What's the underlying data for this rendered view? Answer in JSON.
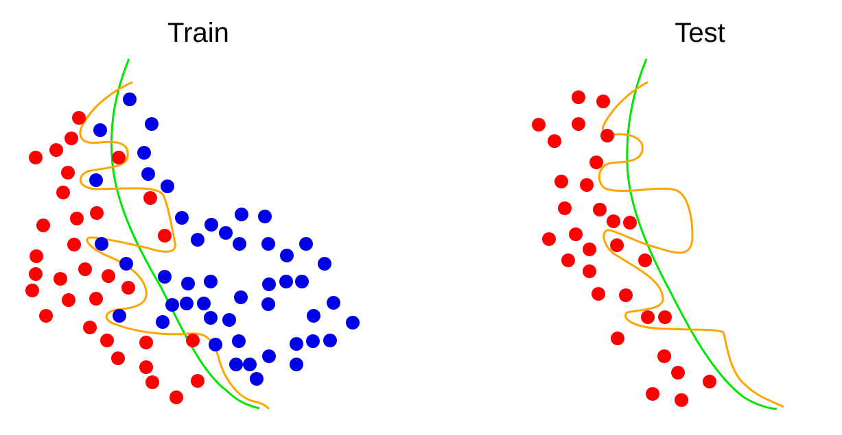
{
  "colors": {
    "class_a": "#ff0000",
    "class_b": "#0000e6",
    "simple_boundary": "#00e600",
    "complex_boundary": "#ffa500"
  },
  "panels": [
    {
      "title": "Train",
      "red_points": [
        [
          115,
          172
        ],
        [
          104,
          202
        ],
        [
          82,
          219
        ],
        [
          52,
          230
        ],
        [
          99,
          252
        ],
        [
          92,
          281
        ],
        [
          141,
          311
        ],
        [
          112,
          319
        ],
        [
          63,
          329
        ],
        [
          108,
          357
        ],
        [
          53,
          374
        ],
        [
          52,
          400
        ],
        [
          88,
          407
        ],
        [
          124,
          393
        ],
        [
          158,
          403
        ],
        [
          187,
          420
        ],
        [
          47,
          424
        ],
        [
          100,
          438
        ],
        [
          140,
          436
        ],
        [
          67,
          461
        ],
        [
          131,
          478
        ],
        [
          156,
          497
        ],
        [
          213,
          500
        ],
        [
          172,
          523
        ],
        [
          213,
          536
        ],
        [
          222,
          558
        ],
        [
          257,
          580
        ],
        [
          288,
          556
        ],
        [
          281,
          497
        ],
        [
          240,
          344
        ],
        [
          219,
          289
        ],
        [
          173,
          230
        ]
      ],
      "blue_points": [
        [
          189,
          145
        ],
        [
          146,
          190
        ],
        [
          221,
          181
        ],
        [
          210,
          223
        ],
        [
          216,
          254
        ],
        [
          140,
          263
        ],
        [
          244,
          272
        ],
        [
          265,
          318
        ],
        [
          308,
          328
        ],
        [
          288,
          350
        ],
        [
          329,
          340
        ],
        [
          352,
          313
        ],
        [
          386,
          316
        ],
        [
          349,
          356
        ],
        [
          391,
          356
        ],
        [
          148,
          356
        ],
        [
          184,
          385
        ],
        [
          240,
          404
        ],
        [
          274,
          414
        ],
        [
          307,
          411
        ],
        [
          418,
          373
        ],
        [
          446,
          356
        ],
        [
          473,
          385
        ],
        [
          417,
          411
        ],
        [
          392,
          415
        ],
        [
          440,
          411
        ],
        [
          351,
          434
        ],
        [
          391,
          444
        ],
        [
          486,
          442
        ],
        [
          457,
          461
        ],
        [
          514,
          471
        ],
        [
          251,
          445
        ],
        [
          272,
          443
        ],
        [
          297,
          443
        ],
        [
          307,
          464
        ],
        [
          334,
          467
        ],
        [
          237,
          470
        ],
        [
          174,
          461
        ],
        [
          314,
          503
        ],
        [
          348,
          498
        ],
        [
          432,
          502
        ],
        [
          456,
          498
        ],
        [
          481,
          497
        ],
        [
          392,
          520
        ],
        [
          364,
          532
        ],
        [
          344,
          532
        ],
        [
          432,
          532
        ],
        [
          374,
          553
        ]
      ]
    },
    {
      "title": "Test",
      "red_points": [
        [
          229,
          142
        ],
        [
          265,
          148
        ],
        [
          171,
          182
        ],
        [
          229,
          181
        ],
        [
          194,
          206
        ],
        [
          271,
          198
        ],
        [
          255,
          237
        ],
        [
          204,
          265
        ],
        [
          241,
          270
        ],
        [
          260,
          306
        ],
        [
          209,
          304
        ],
        [
          280,
          323
        ],
        [
          304,
          325
        ],
        [
          225,
          342
        ],
        [
          186,
          349
        ],
        [
          245,
          364
        ],
        [
          285,
          358
        ],
        [
          214,
          380
        ],
        [
          245,
          396
        ],
        [
          326,
          380
        ],
        [
          258,
          429
        ],
        [
          298,
          431
        ],
        [
          330,
          463
        ],
        [
          355,
          463
        ],
        [
          286,
          494
        ],
        [
          354,
          520
        ],
        [
          374,
          544
        ],
        [
          420,
          557
        ],
        [
          337,
          575
        ],
        [
          379,
          584
        ]
      ]
    }
  ]
}
